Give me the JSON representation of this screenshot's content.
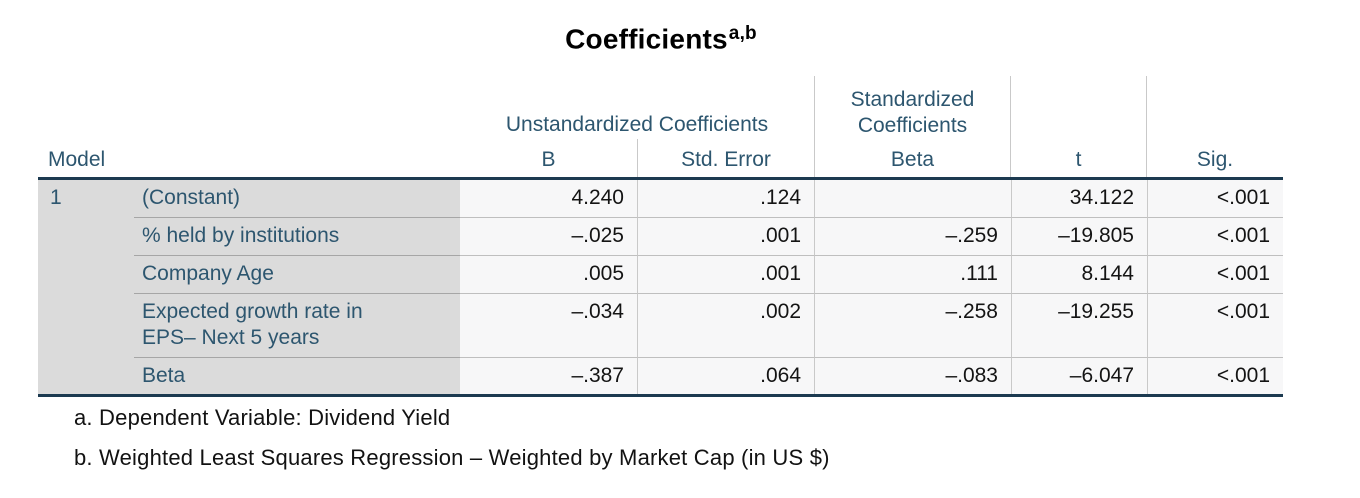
{
  "title": {
    "text": "Coefficients",
    "superscript": "a,b"
  },
  "table": {
    "corner_label": "Model",
    "model_number": "1",
    "groups": {
      "unstandardized": "Unstandardized Coefficients",
      "standardized": "Standardized\nCoefficients"
    },
    "columns": {
      "b": "B",
      "std_error": "Std. Error",
      "beta": "Beta",
      "t": "t",
      "sig": "Sig."
    },
    "rows": [
      {
        "label": "(Constant)",
        "b": "4.240",
        "std_error": ".124",
        "beta": "",
        "t": "34.122",
        "sig": "<.001"
      },
      {
        "label": "% held by institutions",
        "b": "–.025",
        "std_error": ".001",
        "beta": "–.259",
        "t": "–19.805",
        "sig": "<.001"
      },
      {
        "label": "Company Age",
        "b": ".005",
        "std_error": ".001",
        "beta": ".111",
        "t": "8.144",
        "sig": "<.001"
      },
      {
        "label": "Expected growth rate in\nEPS– Next 5 years",
        "b": "–.034",
        "std_error": ".002",
        "beta": "–.258",
        "t": "–19.255",
        "sig": "<.001"
      },
      {
        "label": "Beta",
        "b": "–.387",
        "std_error": ".064",
        "beta": "–.083",
        "t": "–6.047",
        "sig": "<.001"
      }
    ]
  },
  "footnotes": [
    {
      "text": "a. Dependent Variable: Dividend Yield"
    },
    {
      "text": "b. Weighted Least Squares Regression – Weighted by Market Cap (in US $)"
    }
  ],
  "colors": {
    "header_text": "#2d566f",
    "row_label_bg": "#dbdbdb",
    "data_cell_bg": "#f7f7f8",
    "strong_border": "#1c3a50",
    "grid_line": "#c9c9c9",
    "label_grid_line": "#a6a6a6",
    "value_text": "#141414"
  }
}
